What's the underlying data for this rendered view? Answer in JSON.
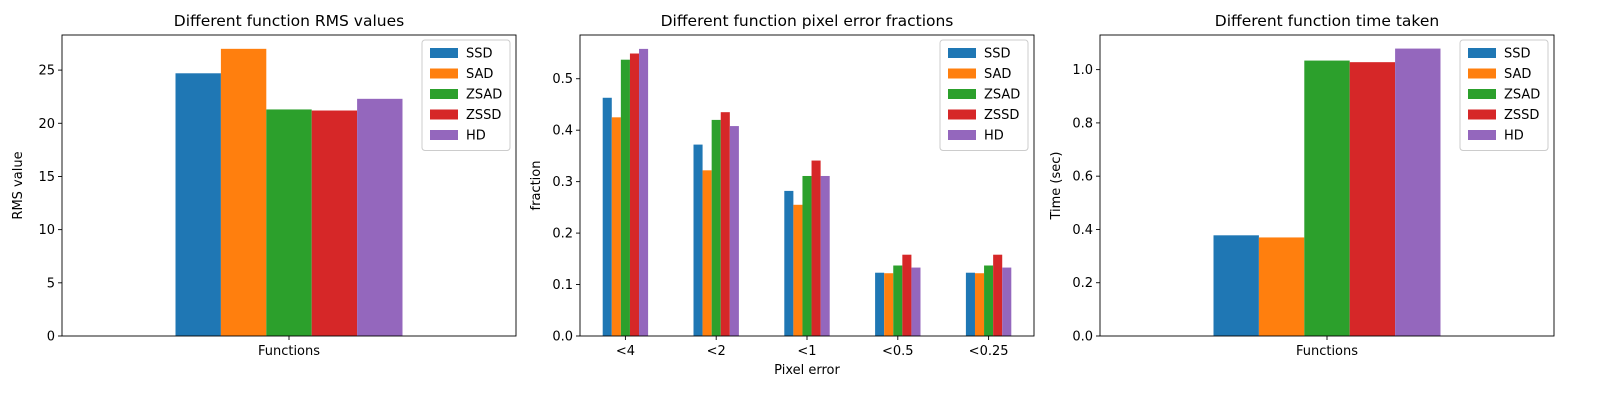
{
  "colors": {
    "SSD": "#1f77b4",
    "SAD": "#ff7f0e",
    "ZSAD": "#2ca02c",
    "ZSSD": "#d62728",
    "HD": "#9467bd"
  },
  "chart_data": [
    {
      "type": "bar",
      "title": "Different function RMS values",
      "xlabel": "",
      "ylabel": "RMS value",
      "categories": [
        "Functions"
      ],
      "ylim": [
        0,
        28.3
      ],
      "yticks": [
        0,
        5,
        10,
        15,
        20,
        25
      ],
      "legend": "top-right",
      "series": [
        {
          "name": "SSD",
          "values": [
            24.7
          ]
        },
        {
          "name": "SAD",
          "values": [
            27.0
          ]
        },
        {
          "name": "ZSAD",
          "values": [
            21.3
          ]
        },
        {
          "name": "ZSSD",
          "values": [
            21.2
          ]
        },
        {
          "name": "HD",
          "values": [
            22.3
          ]
        }
      ]
    },
    {
      "type": "bar",
      "title": "Different function pixel error fractions",
      "xlabel": "Pixel error",
      "ylabel": "fraction",
      "categories": [
        "<4",
        "<2",
        "<1",
        "<0.5",
        "<0.25"
      ],
      "ylim": [
        0,
        0.585
      ],
      "yticks": [
        0.0,
        0.1,
        0.2,
        0.3,
        0.4,
        0.5
      ],
      "legend": "top-right",
      "series": [
        {
          "name": "SSD",
          "values": [
            0.463,
            0.372,
            0.282,
            0.123,
            0.123
          ]
        },
        {
          "name": "SAD",
          "values": [
            0.425,
            0.322,
            0.255,
            0.122,
            0.122
          ]
        },
        {
          "name": "ZSAD",
          "values": [
            0.537,
            0.42,
            0.311,
            0.137,
            0.137
          ]
        },
        {
          "name": "ZSSD",
          "values": [
            0.549,
            0.435,
            0.341,
            0.158,
            0.158
          ]
        },
        {
          "name": "HD",
          "values": [
            0.558,
            0.408,
            0.311,
            0.133,
            0.133
          ]
        }
      ]
    },
    {
      "type": "bar",
      "title": "Different function time taken",
      "xlabel": "",
      "ylabel": "Time (sec)",
      "categories": [
        "Functions"
      ],
      "ylim": [
        0,
        1.13
      ],
      "yticks": [
        0.0,
        0.2,
        0.4,
        0.6,
        0.8,
        1.0
      ],
      "legend": "top-right",
      "series": [
        {
          "name": "SSD",
          "values": [
            0.378
          ]
        },
        {
          "name": "SAD",
          "values": [
            0.37
          ]
        },
        {
          "name": "ZSAD",
          "values": [
            1.034
          ]
        },
        {
          "name": "ZSSD",
          "values": [
            1.028
          ]
        },
        {
          "name": "HD",
          "values": [
            1.079
          ]
        }
      ]
    }
  ]
}
